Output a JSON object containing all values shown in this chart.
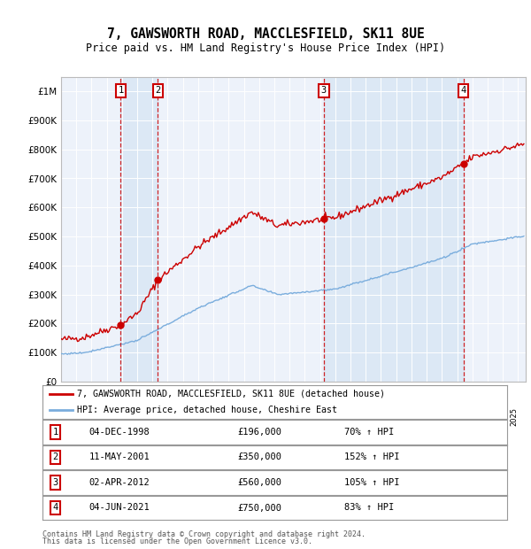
{
  "title": "7, GAWSWORTH ROAD, MACCLESFIELD, SK11 8UE",
  "subtitle": "Price paid vs. HM Land Registry's House Price Index (HPI)",
  "legend_label_red": "7, GAWSWORTH ROAD, MACCLESFIELD, SK11 8UE (detached house)",
  "legend_label_blue": "HPI: Average price, detached house, Cheshire East",
  "footer1": "Contains HM Land Registry data © Crown copyright and database right 2024.",
  "footer2": "This data is licensed under the Open Government Licence v3.0.",
  "sales": [
    {
      "num": 1,
      "date": "04-DEC-1998",
      "price": 196000,
      "pct": "70%",
      "year": 1998.92
    },
    {
      "num": 2,
      "date": "11-MAY-2001",
      "price": 350000,
      "pct": "152%",
      "year": 2001.36
    },
    {
      "num": 3,
      "date": "02-APR-2012",
      "price": 560000,
      "pct": "105%",
      "year": 2012.25
    },
    {
      "num": 4,
      "date": "04-JUN-2021",
      "price": 750000,
      "pct": "83%",
      "year": 2021.42
    }
  ],
  "table_rows": [
    [
      "1",
      "04-DEC-1998",
      "£196,000",
      "70% ↑ HPI"
    ],
    [
      "2",
      "11-MAY-2001",
      "£350,000",
      "152% ↑ HPI"
    ],
    [
      "3",
      "02-APR-2012",
      "£560,000",
      "105% ↑ HPI"
    ],
    [
      "4",
      "04-JUN-2021",
      "£750,000",
      "83% ↑ HPI"
    ]
  ],
  "ylim": [
    0,
    1050000
  ],
  "xlim_start": 1995.0,
  "xlim_end": 2025.5,
  "red_color": "#cc0000",
  "blue_color": "#7aaddd",
  "shade_color": "#dce8f5",
  "grid_color": "#d8d8d8",
  "plot_bg": "#edf2fa"
}
